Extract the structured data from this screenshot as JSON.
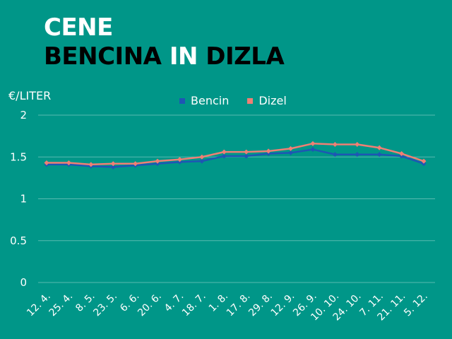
{
  "title": {
    "line1": "CENE",
    "line2_part1": "BENCINA",
    "line2_part2": "IN",
    "line2_part3": "DIZLA"
  },
  "chart_data": {
    "type": "line",
    "ylabel": "€/LITER",
    "ylim": [
      0,
      2
    ],
    "yticks": [
      {
        "value": 0,
        "label": "0"
      },
      {
        "value": 0.5,
        "label": "0.5"
      },
      {
        "value": 1,
        "label": "1"
      },
      {
        "value": 1.5,
        "label": "1.5"
      },
      {
        "value": 2,
        "label": "2"
      }
    ],
    "grid": true,
    "legend_position": "top-center",
    "categories": [
      "12. 4.",
      "25. 4.",
      "8. 5.",
      "23. 5.",
      "6. 6.",
      "20. 6.",
      "4. 7.",
      "18. 7.",
      "1. 8.",
      "17. 8.",
      "29. 8.",
      "12. 9.",
      "26. 9.",
      "10. 10.",
      "24. 10.",
      "7. 11.",
      "21. 11.",
      "5. 12."
    ],
    "series": [
      {
        "name": "Bencin",
        "color": "#1e56b4",
        "values": [
          1.41,
          1.41,
          1.39,
          1.38,
          1.4,
          1.42,
          1.44,
          1.45,
          1.51,
          1.51,
          1.54,
          1.55,
          1.59,
          1.53,
          1.53,
          1.53,
          1.51,
          1.42
        ]
      },
      {
        "name": "Dizel",
        "color": "#f07f74",
        "values": [
          1.43,
          1.43,
          1.41,
          1.42,
          1.42,
          1.45,
          1.47,
          1.5,
          1.56,
          1.56,
          1.57,
          1.6,
          1.66,
          1.65,
          1.65,
          1.61,
          1.54,
          1.45
        ]
      }
    ]
  }
}
